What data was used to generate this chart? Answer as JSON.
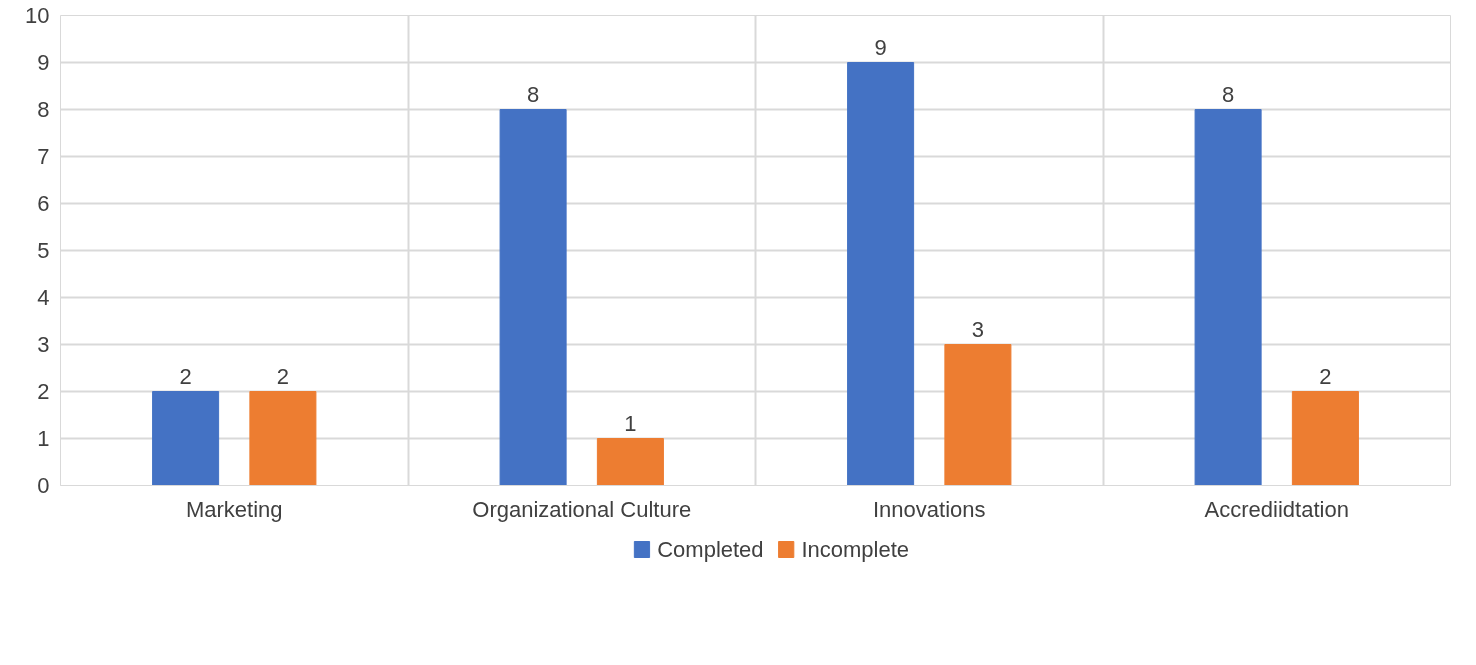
{
  "chart_data": {
    "type": "bar",
    "categories": [
      "Marketing",
      "Organizational Culture",
      "Innovations",
      "Accrediidtation"
    ],
    "series": [
      {
        "name": "Completed",
        "color": "#4472c4",
        "values": [
          2,
          8,
          9,
          8
        ]
      },
      {
        "name": "Incomplete",
        "color": "#ed7d31",
        "values": [
          2,
          1,
          3,
          2
        ]
      }
    ],
    "ylim": [
      0,
      10
    ],
    "yticks": [
      0,
      1,
      2,
      3,
      4,
      5,
      6,
      7,
      8,
      9,
      10
    ],
    "grid": true,
    "legend": "bottom",
    "data_labels": true
  }
}
